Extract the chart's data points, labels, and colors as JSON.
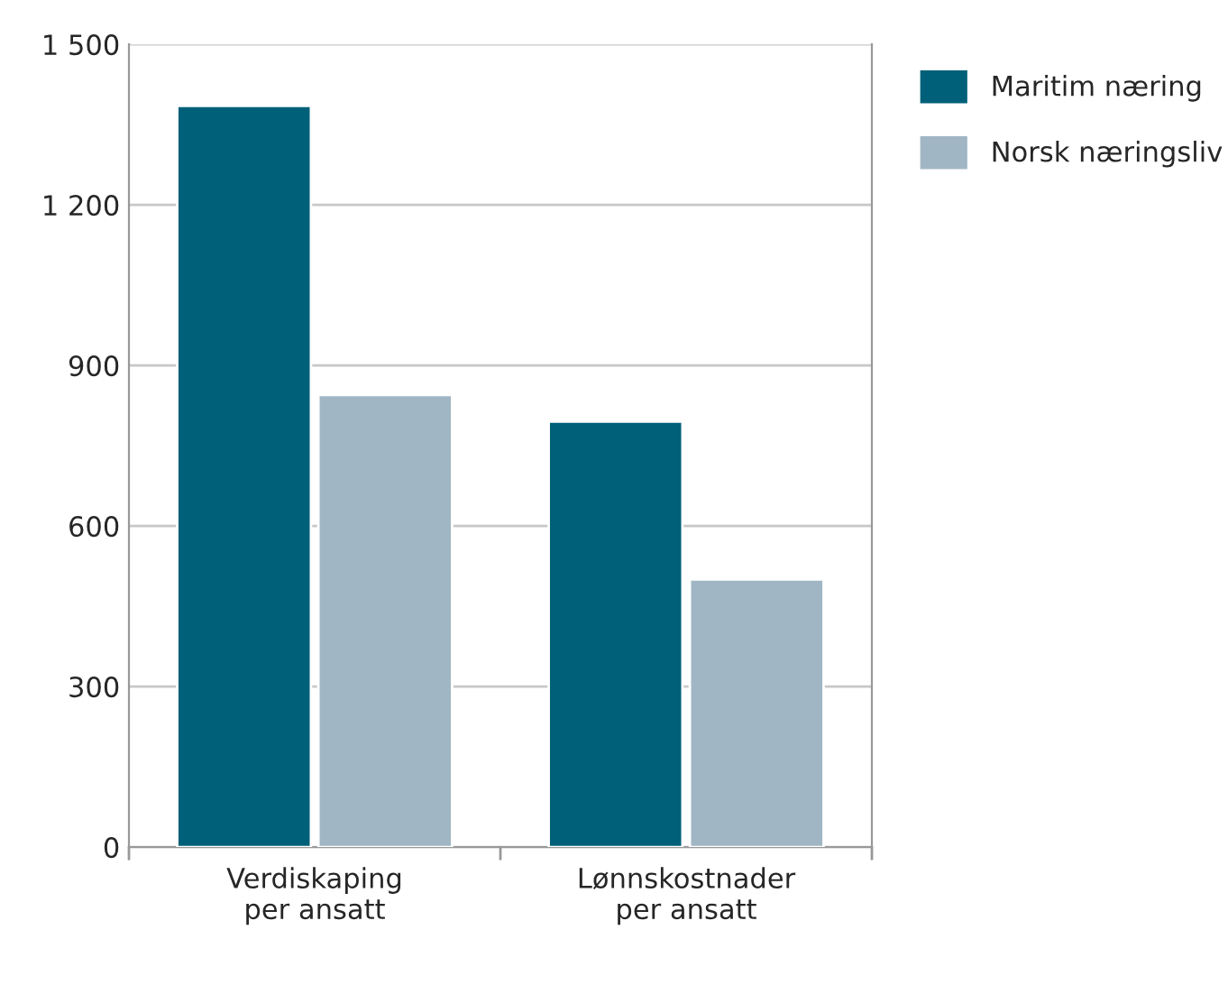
{
  "chart_data": {
    "type": "bar",
    "categories": [
      "Verdiskaping\nper ansatt",
      "Lønnskostnader\nper ansatt"
    ],
    "series": [
      {
        "name": "Maritim næring",
        "color": "#006079",
        "values": [
          1385,
          795
        ]
      },
      {
        "name": "Norsk næringsliv",
        "color": "#a0b6c4",
        "values": [
          845,
          500
        ]
      }
    ],
    "ylim": [
      0,
      1500
    ],
    "yticks": [
      0,
      300,
      600,
      900,
      {
        "value": 1200,
        "label": "1 200"
      },
      {
        "value": 1500,
        "label": "1 500"
      }
    ],
    "grid": "y",
    "legend": "top right"
  }
}
